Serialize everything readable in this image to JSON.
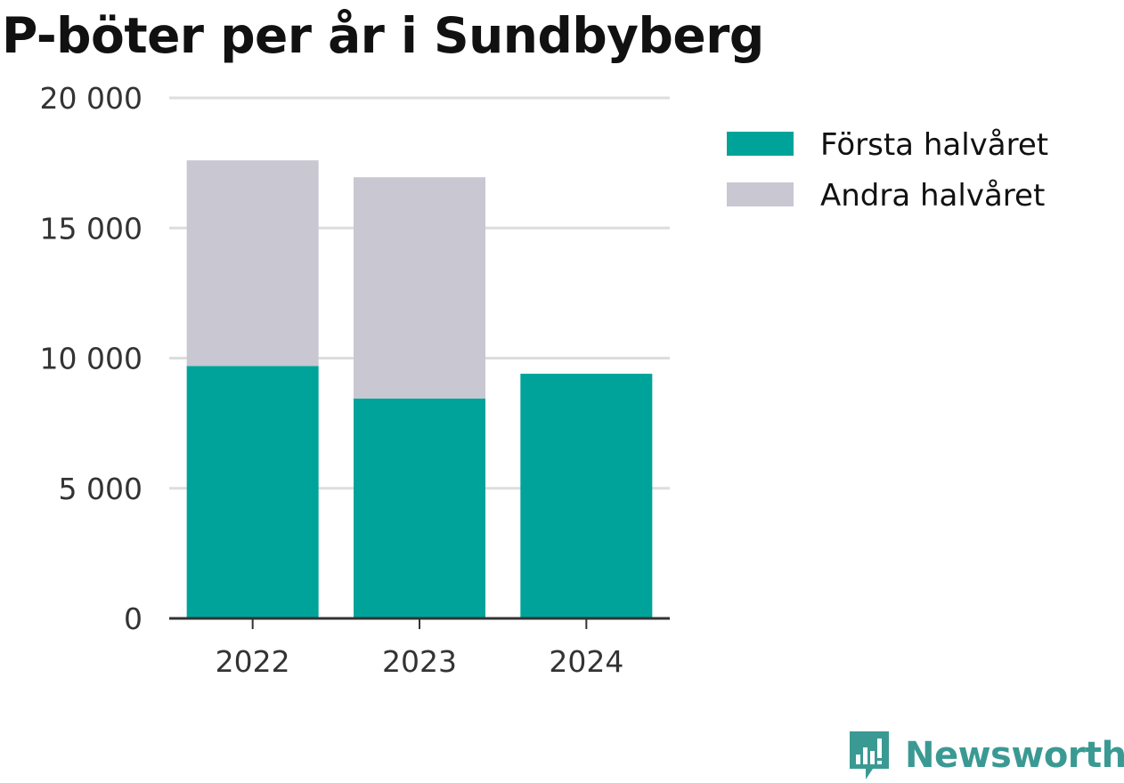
{
  "colors": {
    "first_half": "#00a39a",
    "second_half": "#c8c7d2",
    "grid": "#dddddd",
    "axis": "#333333",
    "brand": "#3a9a93"
  },
  "brand": {
    "name": "Newsworthy",
    "icon": "newsworthy-bar-chart-speech-bubble-icon"
  },
  "chart_data": {
    "type": "bar",
    "stacked": true,
    "title": "P-böter per år i Sundbyberg",
    "xlabel": "",
    "ylabel": "",
    "categories": [
      "2022",
      "2023",
      "2024"
    ],
    "series": [
      {
        "name": "Första halvåret",
        "values": [
          9700,
          8450,
          9400
        ]
      },
      {
        "name": "Andra halvåret",
        "values": [
          7900,
          8500,
          0
        ]
      }
    ],
    "ylim": [
      0,
      20000
    ],
    "yticks": [
      0,
      5000,
      10000,
      15000,
      20000
    ],
    "ytick_labels": [
      "0",
      "5 000",
      "10 000",
      "15 000",
      "20 000"
    ],
    "grid": true,
    "legend_position": "top-right"
  }
}
